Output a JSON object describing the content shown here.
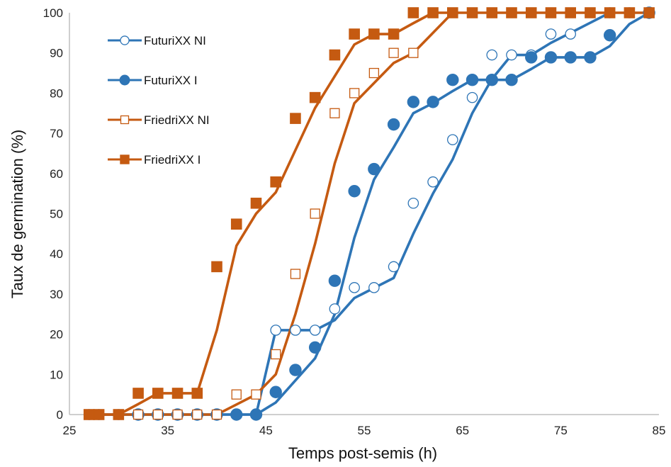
{
  "chart_data": {
    "type": "line",
    "title": "",
    "xlabel": "Temps post-semis (h)",
    "ylabel": "Taux de germination (%)",
    "xlim": [
      25,
      85
    ],
    "ylim": [
      0,
      100
    ],
    "xticks": [
      25,
      35,
      45,
      55,
      65,
      75,
      85
    ],
    "yticks": [
      0,
      10,
      20,
      30,
      40,
      50,
      60,
      70,
      80,
      90,
      100
    ],
    "grid": false,
    "legend_position": "top-left",
    "series": [
      {
        "name": "FuturiXX NI",
        "color": "#2e75b6",
        "marker": "circle-open",
        "points": [
          [
            27,
            0
          ],
          [
            28,
            0
          ],
          [
            30,
            0
          ],
          [
            32,
            0
          ],
          [
            34,
            0
          ],
          [
            36,
            0
          ],
          [
            38,
            0
          ],
          [
            40,
            0
          ],
          [
            42,
            0
          ],
          [
            44,
            0
          ],
          [
            46,
            21
          ],
          [
            48,
            21
          ],
          [
            50,
            21
          ],
          [
            52,
            26.3
          ],
          [
            54,
            31.6
          ],
          [
            56,
            31.6
          ],
          [
            58,
            36.8
          ],
          [
            60,
            52.6
          ],
          [
            62,
            57.9
          ],
          [
            64,
            68.4
          ],
          [
            66,
            78.9
          ],
          [
            68,
            89.5
          ],
          [
            70,
            89.5
          ],
          [
            72,
            89.5
          ],
          [
            74,
            94.7
          ],
          [
            76,
            94.7
          ],
          [
            80,
            100
          ],
          [
            82,
            100
          ],
          [
            84,
            100
          ]
        ],
        "fit": [
          [
            27,
            0
          ],
          [
            44,
            0
          ],
          [
            46,
            21
          ],
          [
            48,
            21
          ],
          [
            50,
            21
          ],
          [
            52,
            23.5
          ],
          [
            54,
            29
          ],
          [
            56,
            31.5
          ],
          [
            58,
            34
          ],
          [
            60,
            45
          ],
          [
            62,
            55
          ],
          [
            64,
            63.5
          ],
          [
            66,
            75
          ],
          [
            68,
            83.5
          ],
          [
            70,
            89.5
          ],
          [
            72,
            89.5
          ],
          [
            74,
            92.5
          ],
          [
            76,
            95
          ],
          [
            78,
            97.5
          ],
          [
            80,
            100
          ]
        ]
      },
      {
        "name": "FuturiXX I",
        "color": "#2e75b6",
        "marker": "circle-filled",
        "points": [
          [
            32,
            0
          ],
          [
            34,
            0
          ],
          [
            36,
            0
          ],
          [
            38,
            0
          ],
          [
            40,
            0
          ],
          [
            42,
            0
          ],
          [
            44,
            0
          ],
          [
            46,
            5.6
          ],
          [
            48,
            11.1
          ],
          [
            50,
            16.7
          ],
          [
            52,
            33.3
          ],
          [
            54,
            55.6
          ],
          [
            56,
            61.1
          ],
          [
            58,
            72.2
          ],
          [
            60,
            77.8
          ],
          [
            62,
            77.8
          ],
          [
            64,
            83.3
          ],
          [
            66,
            83.3
          ],
          [
            68,
            83.3
          ],
          [
            70,
            83.3
          ],
          [
            72,
            88.9
          ],
          [
            74,
            88.9
          ],
          [
            76,
            88.9
          ],
          [
            78,
            88.9
          ],
          [
            80,
            94.4
          ],
          [
            84,
            100
          ]
        ],
        "fit": [
          [
            27,
            0
          ],
          [
            44,
            0
          ],
          [
            46,
            3
          ],
          [
            48,
            8.5
          ],
          [
            50,
            14
          ],
          [
            52,
            25
          ],
          [
            54,
            44
          ],
          [
            56,
            58.5
          ],
          [
            58,
            66.5
          ],
          [
            60,
            75
          ],
          [
            62,
            77.5
          ],
          [
            64,
            80.5
          ],
          [
            66,
            83.3
          ],
          [
            68,
            83.3
          ],
          [
            70,
            83.3
          ],
          [
            72,
            86
          ],
          [
            74,
            88.9
          ],
          [
            76,
            88.9
          ],
          [
            78,
            88.9
          ],
          [
            80,
            91.7
          ],
          [
            82,
            97.2
          ],
          [
            84,
            100
          ]
        ]
      },
      {
        "name": "FriedriXX NI",
        "color": "#c55a11",
        "marker": "square-open",
        "points": [
          [
            27,
            0
          ],
          [
            28,
            0
          ],
          [
            30,
            0
          ],
          [
            32,
            0
          ],
          [
            34,
            0
          ],
          [
            36,
            0
          ],
          [
            38,
            0
          ],
          [
            40,
            0
          ],
          [
            42,
            5
          ],
          [
            44,
            5
          ],
          [
            46,
            15
          ],
          [
            48,
            35
          ],
          [
            50,
            50
          ],
          [
            52,
            75
          ],
          [
            54,
            80
          ],
          [
            56,
            85
          ],
          [
            58,
            90
          ],
          [
            60,
            90
          ],
          [
            62,
            100
          ],
          [
            64,
            100
          ]
        ],
        "fit": [
          [
            27,
            0
          ],
          [
            40,
            0
          ],
          [
            42,
            2.5
          ],
          [
            44,
            5
          ],
          [
            46,
            10
          ],
          [
            48,
            25
          ],
          [
            50,
            42.5
          ],
          [
            52,
            62.5
          ],
          [
            54,
            77.5
          ],
          [
            56,
            82.5
          ],
          [
            58,
            87.5
          ],
          [
            60,
            90
          ],
          [
            62,
            95
          ],
          [
            64,
            100
          ]
        ]
      },
      {
        "name": "FriedriXX I",
        "color": "#c55a11",
        "marker": "square-filled",
        "points": [
          [
            27,
            0
          ],
          [
            28,
            0
          ],
          [
            30,
            0
          ],
          [
            32,
            5.3
          ],
          [
            34,
            5.3
          ],
          [
            36,
            5.3
          ],
          [
            38,
            5.3
          ],
          [
            40,
            36.8
          ],
          [
            42,
            47.4
          ],
          [
            44,
            52.6
          ],
          [
            46,
            57.9
          ],
          [
            48,
            73.7
          ],
          [
            50,
            78.9
          ],
          [
            52,
            89.5
          ],
          [
            54,
            94.7
          ],
          [
            56,
            94.7
          ],
          [
            58,
            94.7
          ],
          [
            60,
            100
          ],
          [
            62,
            100
          ],
          [
            64,
            100
          ],
          [
            66,
            100
          ],
          [
            68,
            100
          ],
          [
            70,
            100
          ],
          [
            72,
            100
          ],
          [
            74,
            100
          ],
          [
            76,
            100
          ],
          [
            78,
            100
          ],
          [
            80,
            100
          ],
          [
            82,
            100
          ],
          [
            84,
            100
          ]
        ],
        "fit": [
          [
            27,
            0
          ],
          [
            30,
            0
          ],
          [
            32,
            2.6
          ],
          [
            34,
            5.3
          ],
          [
            36,
            5.3
          ],
          [
            38,
            5.3
          ],
          [
            40,
            21
          ],
          [
            42,
            42
          ],
          [
            44,
            50
          ],
          [
            46,
            55.3
          ],
          [
            48,
            65.8
          ],
          [
            50,
            76.3
          ],
          [
            52,
            84.2
          ],
          [
            54,
            92.1
          ],
          [
            56,
            94.7
          ],
          [
            58,
            94.7
          ],
          [
            60,
            97.4
          ],
          [
            62,
            100
          ],
          [
            84,
            100
          ]
        ]
      }
    ]
  }
}
